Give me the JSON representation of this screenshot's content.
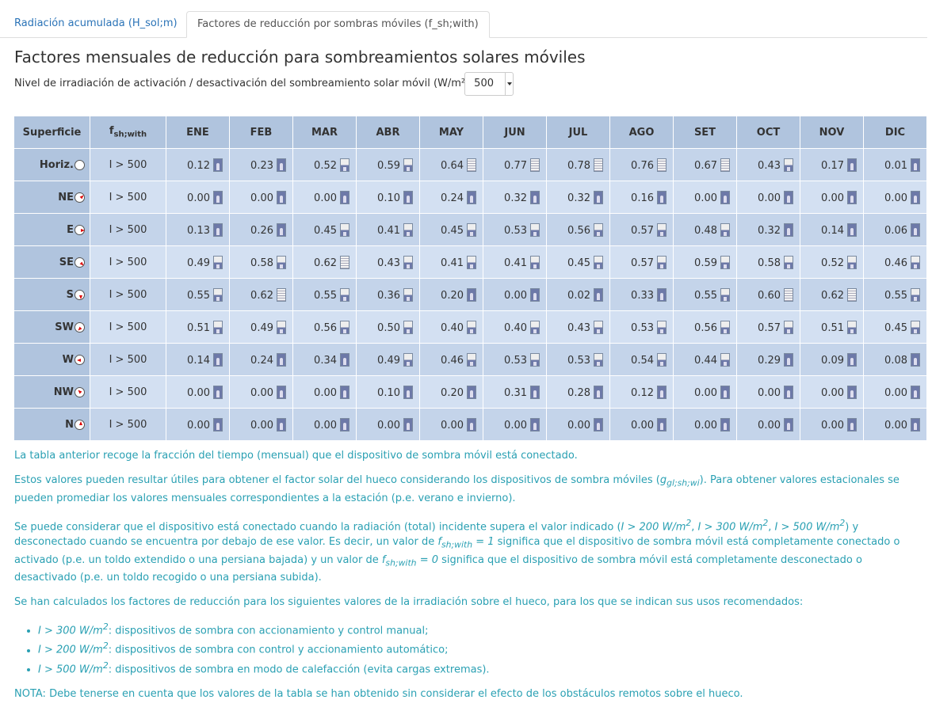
{
  "tabs": [
    {
      "label": "Radiación acumulada (H_sol;m)",
      "active": false
    },
    {
      "label": "Factores de reducción por sombras móviles (f_sh;with)",
      "active": true
    }
  ],
  "page_title": "Factores mensuales de reducción para sombreamientos solares móviles",
  "level": {
    "label": "Nivel de irradiación de activación / desactivación del sombreamiento solar móvil (W/m²):",
    "value": "500"
  },
  "table": {
    "col_surface": "Superficie",
    "col_fsh_main": "f",
    "col_fsh_sub": "sh;with",
    "months": [
      "ENE",
      "FEB",
      "MAR",
      "ABR",
      "MAY",
      "JUN",
      "JUL",
      "AGO",
      "SET",
      "OCT",
      "NOV",
      "DIC"
    ],
    "rows": [
      {
        "surface": "Horiz.",
        "condition": "I > 500",
        "values": [
          "0.12",
          "0.23",
          "0.52",
          "0.59",
          "0.64",
          "0.77",
          "0.78",
          "0.76",
          "0.67",
          "0.43",
          "0.17",
          "0.01"
        ]
      },
      {
        "surface": "NE",
        "condition": "I > 500",
        "values": [
          "0.00",
          "0.00",
          "0.00",
          "0.10",
          "0.24",
          "0.32",
          "0.32",
          "0.16",
          "0.00",
          "0.00",
          "0.00",
          "0.00"
        ]
      },
      {
        "surface": "E",
        "condition": "I > 500",
        "values": [
          "0.13",
          "0.26",
          "0.45",
          "0.41",
          "0.45",
          "0.53",
          "0.56",
          "0.57",
          "0.48",
          "0.32",
          "0.14",
          "0.06"
        ]
      },
      {
        "surface": "SE",
        "condition": "I > 500",
        "values": [
          "0.49",
          "0.58",
          "0.62",
          "0.43",
          "0.41",
          "0.41",
          "0.45",
          "0.57",
          "0.59",
          "0.58",
          "0.52",
          "0.46"
        ]
      },
      {
        "surface": "S",
        "condition": "I > 500",
        "values": [
          "0.55",
          "0.62",
          "0.55",
          "0.36",
          "0.20",
          "0.00",
          "0.02",
          "0.33",
          "0.55",
          "0.60",
          "0.62",
          "0.55"
        ]
      },
      {
        "surface": "SW",
        "condition": "I > 500",
        "values": [
          "0.51",
          "0.49",
          "0.56",
          "0.50",
          "0.40",
          "0.40",
          "0.43",
          "0.53",
          "0.56",
          "0.57",
          "0.51",
          "0.45"
        ]
      },
      {
        "surface": "W",
        "condition": "I > 500",
        "values": [
          "0.14",
          "0.24",
          "0.34",
          "0.49",
          "0.46",
          "0.53",
          "0.53",
          "0.54",
          "0.44",
          "0.29",
          "0.09",
          "0.08"
        ]
      },
      {
        "surface": "NW",
        "condition": "I > 500",
        "values": [
          "0.00",
          "0.00",
          "0.00",
          "0.10",
          "0.20",
          "0.31",
          "0.28",
          "0.12",
          "0.00",
          "0.00",
          "0.00",
          "0.00"
        ]
      },
      {
        "surface": "N",
        "condition": "I > 500",
        "values": [
          "0.00",
          "0.00",
          "0.00",
          "0.00",
          "0.00",
          "0.00",
          "0.00",
          "0.00",
          "0.00",
          "0.00",
          "0.00",
          "0.00"
        ]
      }
    ]
  },
  "notes": {
    "p1": "La tabla anterior recoge la fracción del tiempo (mensual) que el dispositivo de sombra móvil está conectado.",
    "p2a": "Estos valores pueden resultar útiles para obtener el factor solar del hueco considerando los dispositivos de sombra móviles (",
    "p2_expr": "g",
    "p2_sub": "gl;sh;wi",
    "p2b": "). Para obtener valores estacionales se pueden promediar los valores mensuales correspondientes a la estación (p.e. verano e invierno).",
    "p3a": "Se puede considerar que el dispositivo está conectado cuando la radiación (total) incidente supera el valor indicado (",
    "p3_e1": "I > 200 W/m",
    "p3_e2": "I > 300 W/m",
    "p3_e3": "I > 500 W/m",
    "p3b": ") y desconectado cuando se encuentra por debajo de ese valor. Es decir, un valor de ",
    "p3_f": "f",
    "p3_fsub": "sh;with",
    "p3_eq1": " = 1",
    "p3c": " significa que el dispositivo de sombra móvil está completamente conectado o activado (p.e. un toldo extendido o una persiana bajada) y un valor de ",
    "p3_eq0": " = 0",
    "p3d": " significa que el dispositivo de sombra móvil está completamente desconectado o desactivado (p.e. un toldo recogido o una persiana subida).",
    "p4": "Se han calculados los factores de reducción para los siguientes valores de la irradiación sobre el hueco, para los que se indican sus usos recomendados:",
    "li1_expr": "I > 300 W/m",
    "li1_text": ": dispositivos de sombra con accionamiento y control manual;",
    "li2_expr": "I > 200 W/m",
    "li2_text": ": dispositivos de sombra con control y accionamiento automático;",
    "li3_expr": "I > 500 W/m",
    "li3_text": ": dispositivos de sombra en modo de calefacción (evita cargas extremas).",
    "sup2": "2",
    "p5": "NOTA: Debe tenerse en cuenta que los valores de la tabla se han obtenido sin considerar el efecto de los obstáculos remotos sobre el hueco."
  }
}
